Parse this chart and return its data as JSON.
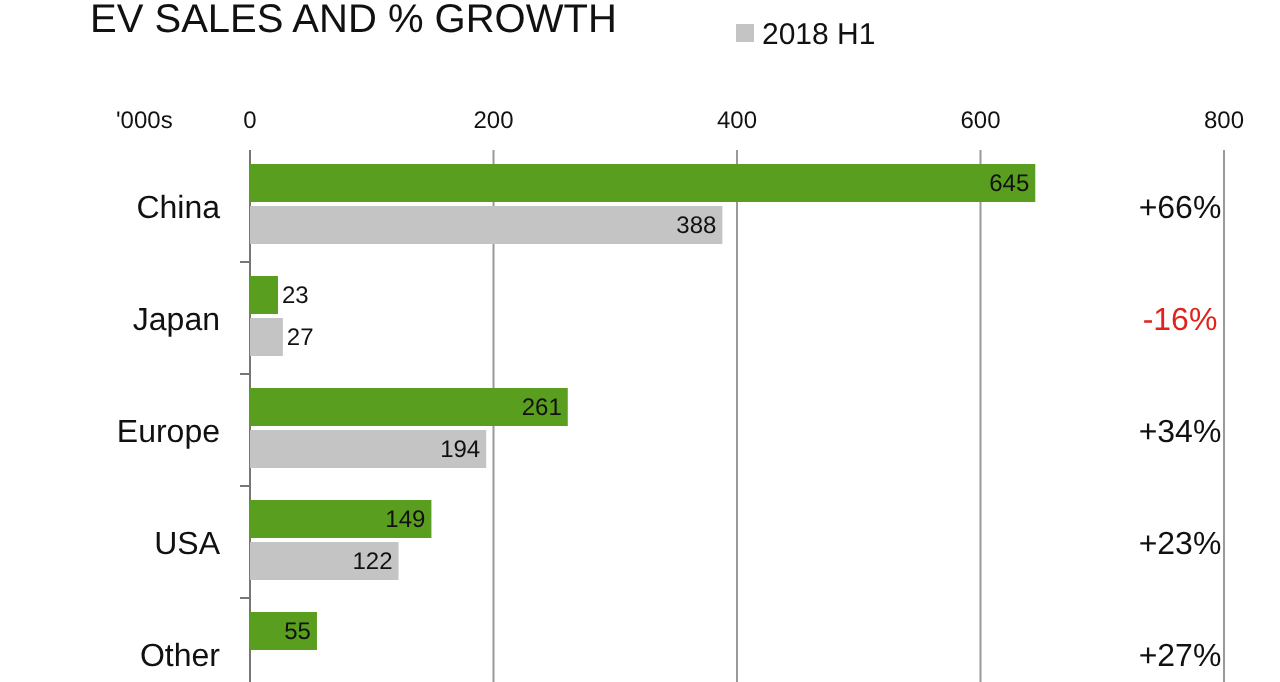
{
  "chart_data": {
    "type": "bar",
    "orientation": "horizontal",
    "title": "EV SALES AND % GROWTH",
    "xlabel": "'000s",
    "categories": [
      "China",
      "Japan",
      "Europe",
      "USA",
      "Other"
    ],
    "series": [
      {
        "color": "#5a9e1f",
        "values": [
          645,
          23,
          261,
          149,
          55
        ]
      },
      {
        "name": "2018 H1",
        "color": "#c4c4c4",
        "values": [
          388,
          27,
          194,
          122,
          null
        ]
      }
    ],
    "xlim": [
      0,
      800
    ],
    "xticks": [
      0,
      200,
      400,
      600,
      800
    ],
    "grid": "x",
    "legend": "top",
    "data_labels": true,
    "annotations": [
      "+66%",
      "-16%",
      "+34%",
      "+23%",
      "+27%"
    ]
  }
}
